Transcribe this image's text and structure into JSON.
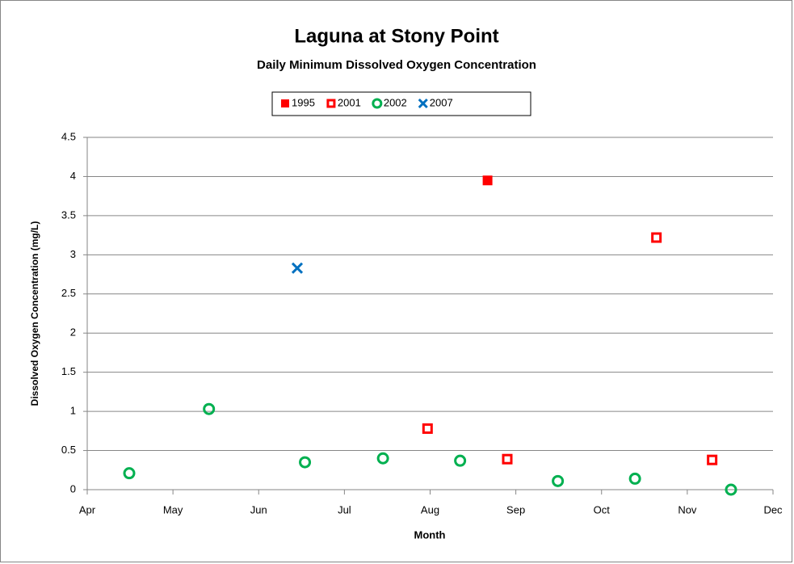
{
  "chart_data": {
    "type": "scatter",
    "title": "Laguna at Stony Point",
    "subtitle": "Daily Minimum Dissolved Oxygen Concentration",
    "x_label": "Month",
    "y_label": "Dissolved Oxygen Concentration (mg/L)",
    "xlim": [
      0,
      8
    ],
    "xticks": [
      {
        "value": 0,
        "label": "Apr"
      },
      {
        "value": 1,
        "label": "May"
      },
      {
        "value": 2,
        "label": "Jun"
      },
      {
        "value": 3,
        "label": "Jul"
      },
      {
        "value": 4,
        "label": "Aug"
      },
      {
        "value": 5,
        "label": "Sep"
      },
      {
        "value": 6,
        "label": "Oct"
      },
      {
        "value": 7,
        "label": "Nov"
      },
      {
        "value": 8,
        "label": "Dec"
      }
    ],
    "ylim": [
      0,
      4.5
    ],
    "yticks": [
      0,
      0.5,
      1,
      1.5,
      2,
      2.5,
      3,
      3.5,
      4,
      4.5
    ],
    "grid": true,
    "legend": "top",
    "series": [
      {
        "name": "1995",
        "color": "#ff0000",
        "marker": "square",
        "x": [
          4.67
        ],
        "values": [
          3.95
        ]
      },
      {
        "name": "2001",
        "color": "#ff0000",
        "marker": "square-open",
        "x": [
          3.97,
          4.9,
          6.64,
          7.29
        ],
        "values": [
          0.78,
          0.39,
          3.22,
          0.38
        ]
      },
      {
        "name": "2002",
        "color": "#00b050",
        "marker": "circle-open",
        "x": [
          0.49,
          1.42,
          2.54,
          3.45,
          4.35,
          5.49,
          6.39,
          7.51
        ],
        "values": [
          0.21,
          1.03,
          0.35,
          0.4,
          0.37,
          0.11,
          0.14,
          0.0
        ]
      },
      {
        "name": "2007",
        "color": "#0070c0",
        "marker": "x",
        "x": [
          2.45
        ],
        "values": [
          2.83
        ]
      }
    ]
  }
}
